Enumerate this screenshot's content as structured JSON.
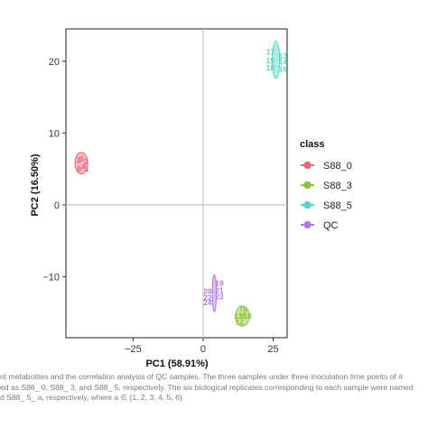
{
  "chart_data": {
    "type": "scatter",
    "xlabel": "PC1 (58.91%)",
    "ylabel": "PC2 (16.50%)",
    "xlim": [
      -49,
      30
    ],
    "ylim": [
      -18.5,
      24.5
    ],
    "xticks": [
      -25,
      0,
      25
    ],
    "xtick_labels": [
      "−25",
      "0",
      "25"
    ],
    "yticks": [
      -10,
      0,
      10,
      20
    ],
    "ytick_labels": [
      "−10",
      "0",
      "10",
      "20"
    ],
    "grid": false,
    "zero_lines": true,
    "legend": {
      "title": "class",
      "position": "right",
      "entries": [
        "S88_0",
        "S88_3",
        "S88_5",
        "QC"
      ]
    },
    "series": [
      {
        "name": "S88_0",
        "color": "#e8677a",
        "ellipse": {
          "cx": -43.5,
          "cy": 5.8,
          "rx": 2.3,
          "ry": 1.5,
          "angle": 0
        },
        "points": [
          {
            "label": "3",
            "x": -44.5,
            "y": 6.2
          },
          {
            "label": "5",
            "x": -43.3,
            "y": 6.4
          },
          {
            "label": "2",
            "x": -41.8,
            "y": 6.0
          },
          {
            "label": "6",
            "x": -44.3,
            "y": 5.0
          },
          {
            "label": "4",
            "x": -42.8,
            "y": 5.3
          },
          {
            "label": "1",
            "x": -41.5,
            "y": 5.0
          }
        ]
      },
      {
        "name": "S88_3",
        "color": "#8bc43a",
        "ellipse": {
          "cx": 14,
          "cy": -15.5,
          "rx": 2.5,
          "ry": 1.4,
          "angle": 0
        },
        "points": [
          {
            "label": "7",
            "x": 13.5,
            "y": -14.4
          },
          {
            "label": "8",
            "x": 15.0,
            "y": -14.6
          },
          {
            "label": "11",
            "x": 12.5,
            "y": -15.5
          },
          {
            "label": "9",
            "x": 14.2,
            "y": -15.4
          },
          {
            "label": "10",
            "x": 15.8,
            "y": -15.5
          },
          {
            "label": "12",
            "x": 13.0,
            "y": -16.3
          }
        ]
      },
      {
        "name": "S88_5",
        "color": "#52d8c2",
        "ellipse": {
          "cx": 26,
          "cy": 20.2,
          "rx": 1.3,
          "ry": 2.6,
          "angle": 0
        },
        "points": [
          {
            "label": "17",
            "x": 24.0,
            "y": 21.3
          },
          {
            "label": "13",
            "x": 28.5,
            "y": 20.7
          },
          {
            "label": "15",
            "x": 24.0,
            "y": 20.1
          },
          {
            "label": "14",
            "x": 28.5,
            "y": 19.9
          },
          {
            "label": "18",
            "x": 24.0,
            "y": 19.1
          },
          {
            "label": "16",
            "x": 28.5,
            "y": 18.9
          }
        ]
      },
      {
        "name": "QC",
        "color": "#b07ce0",
        "ellipse": {
          "cx": 4,
          "cy": -12.3,
          "rx": 0.7,
          "ry": 2.6,
          "angle": 0
        },
        "points": [
          {
            "label": "19",
            "x": 5.8,
            "y": -10.9
          },
          {
            "label": "20",
            "x": 1.6,
            "y": -12.0
          },
          {
            "label": "21",
            "x": 5.8,
            "y": -11.9
          },
          {
            "label": "22",
            "x": 1.6,
            "y": -12.9
          },
          {
            "label": "23",
            "x": 5.8,
            "y": -12.8
          },
          {
            "label": "24",
            "x": 1.6,
            "y": -13.6
          }
        ]
      }
    ]
  },
  "caption": {
    "line1": "nt metabolites and the correlation analysis of QC samples. The three samples under three inoculation time points of #",
    "line2": "ed as S88_ 0, S88_ 3, and S88_ 5, respectively. The six biological replicates corresponding to each sample were named",
    "line3": "d S88_ 5_ a, respectively, where a ∈ {1, 2, 3, 4, 5, 6}."
  }
}
